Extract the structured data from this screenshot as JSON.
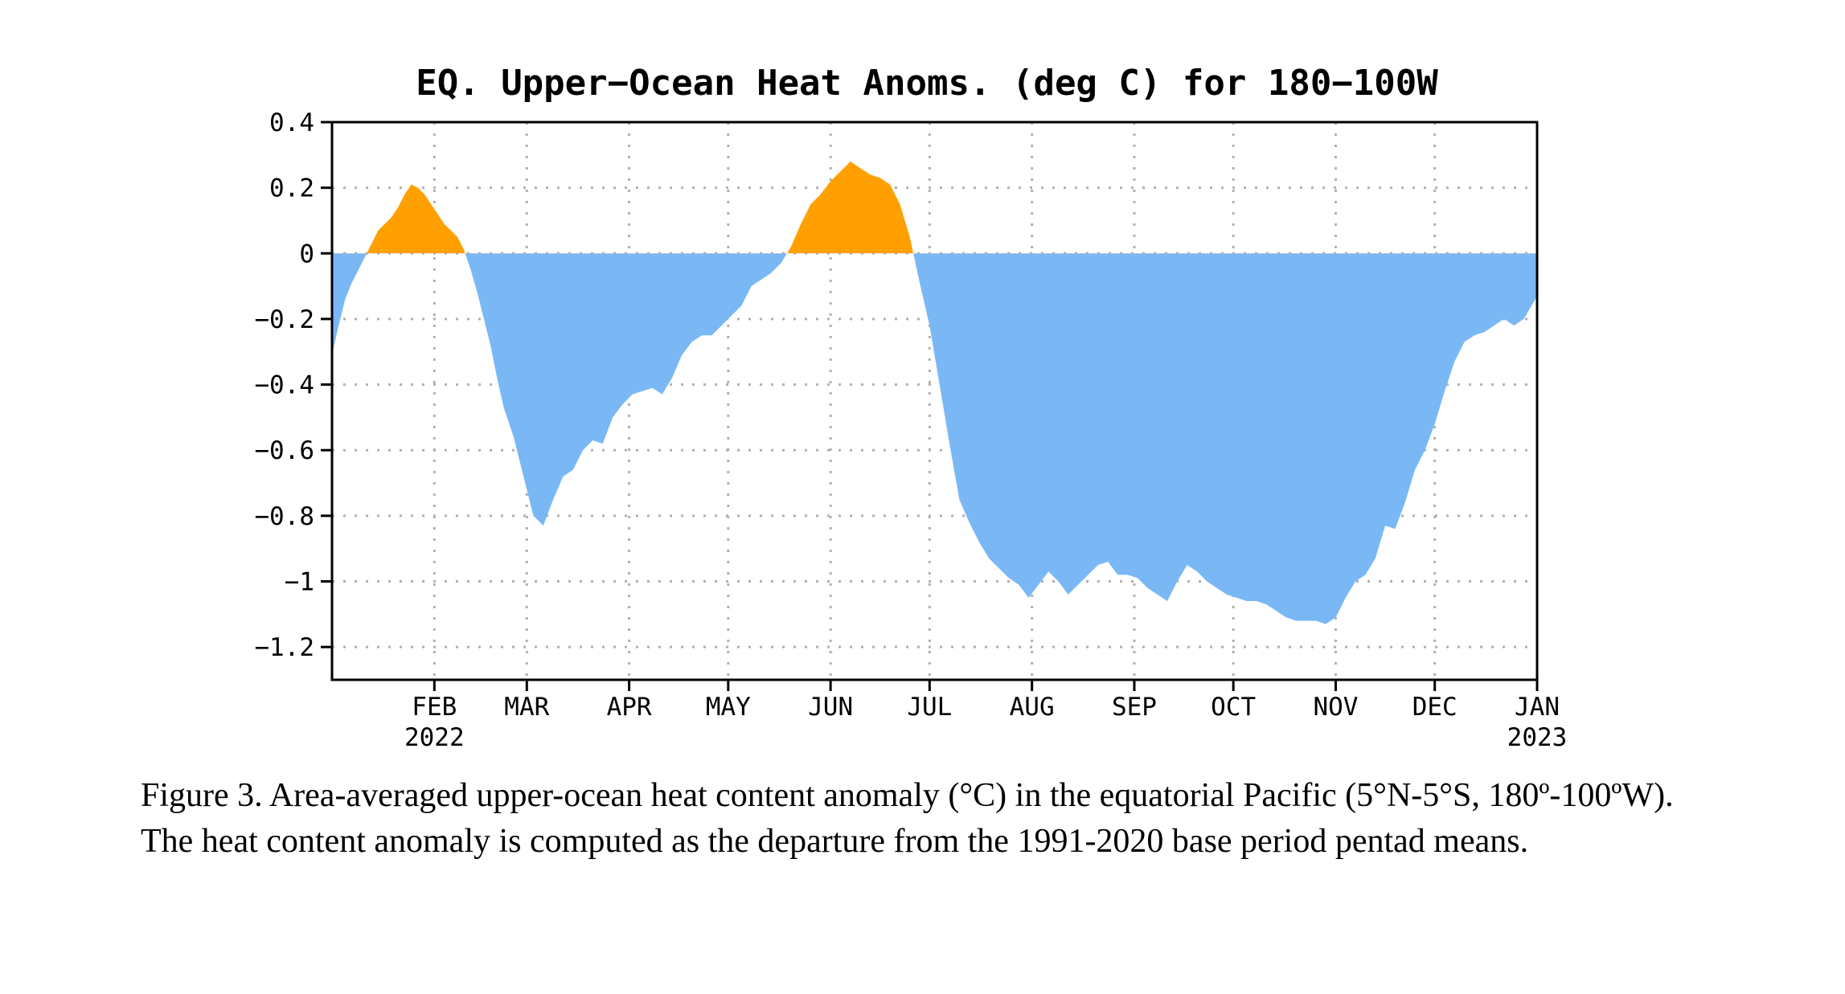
{
  "chart_data": {
    "type": "area",
    "title": "EQ. Upper−Ocean Heat Anoms. (deg C) for 180−100W",
    "xlabel": "",
    "ylabel": "",
    "ylim": [
      -1.3,
      0.4
    ],
    "yticks": [
      0.4,
      0.2,
      0,
      -0.2,
      -0.4,
      -0.6,
      -0.8,
      -1,
      -1.2
    ],
    "ytick_labels": [
      "0.4",
      "0.2",
      "0",
      "−0.2",
      "−0.4",
      "−0.6",
      "−0.8",
      "−1",
      "−1.2"
    ],
    "xlim": [
      "2022-01-01",
      "2023-01-01"
    ],
    "xticks": [
      {
        "date": "2022-02-01",
        "label": "FEB",
        "year": "2022"
      },
      {
        "date": "2022-03-01",
        "label": "MAR",
        "year": ""
      },
      {
        "date": "2022-04-01",
        "label": "APR",
        "year": ""
      },
      {
        "date": "2022-05-01",
        "label": "MAY",
        "year": ""
      },
      {
        "date": "2022-06-01",
        "label": "JUN",
        "year": ""
      },
      {
        "date": "2022-07-01",
        "label": "JUL",
        "year": ""
      },
      {
        "date": "2022-08-01",
        "label": "AUG",
        "year": ""
      },
      {
        "date": "2022-09-01",
        "label": "SEP",
        "year": ""
      },
      {
        "date": "2022-10-01",
        "label": "OCT",
        "year": ""
      },
      {
        "date": "2022-11-01",
        "label": "NOV",
        "year": ""
      },
      {
        "date": "2022-12-01",
        "label": "DEC",
        "year": ""
      },
      {
        "date": "2023-01-01",
        "label": "JAN",
        "year": "2023"
      }
    ],
    "grid": true,
    "positive_color": "#ffa000",
    "negative_color": "#7ab8f5",
    "series": [
      {
        "x": [
          "2022-01-01",
          "2022-01-03",
          "2022-01-05",
          "2022-01-07",
          "2022-01-09",
          "2022-01-11",
          "2022-01-13",
          "2022-01-15",
          "2022-01-17",
          "2022-01-19",
          "2022-01-21",
          "2022-01-23",
          "2022-01-25",
          "2022-01-27",
          "2022-01-29",
          "2022-01-31",
          "2022-02-02",
          "2022-02-04",
          "2022-02-06",
          "2022-02-08",
          "2022-02-10",
          "2022-02-12",
          "2022-02-14",
          "2022-02-16",
          "2022-02-18",
          "2022-02-20",
          "2022-02-22",
          "2022-02-25",
          "2022-02-28",
          "2022-03-03",
          "2022-03-06",
          "2022-03-09",
          "2022-03-12",
          "2022-03-15",
          "2022-03-18",
          "2022-03-21",
          "2022-03-24",
          "2022-03-27",
          "2022-03-30",
          "2022-04-02",
          "2022-04-05",
          "2022-04-08",
          "2022-04-11",
          "2022-04-14",
          "2022-04-17",
          "2022-04-20",
          "2022-04-23",
          "2022-04-26",
          "2022-04-29",
          "2022-05-02",
          "2022-05-05",
          "2022-05-08",
          "2022-05-11",
          "2022-05-14",
          "2022-05-17",
          "2022-05-20",
          "2022-05-23",
          "2022-05-26",
          "2022-05-29",
          "2022-06-01",
          "2022-06-04",
          "2022-06-07",
          "2022-06-10",
          "2022-06-13",
          "2022-06-16",
          "2022-06-19",
          "2022-06-22",
          "2022-06-25",
          "2022-06-28",
          "2022-07-01",
          "2022-07-04",
          "2022-07-07",
          "2022-07-10",
          "2022-07-13",
          "2022-07-16",
          "2022-07-19",
          "2022-07-22",
          "2022-07-25",
          "2022-07-28",
          "2022-07-31",
          "2022-08-03",
          "2022-08-06",
          "2022-08-09",
          "2022-08-12",
          "2022-08-15",
          "2022-08-18",
          "2022-08-21",
          "2022-08-24",
          "2022-08-27",
          "2022-08-30",
          "2022-09-02",
          "2022-09-05",
          "2022-09-08",
          "2022-09-11",
          "2022-09-14",
          "2022-09-17",
          "2022-09-20",
          "2022-09-23",
          "2022-09-26",
          "2022-09-29",
          "2022-10-02",
          "2022-10-05",
          "2022-10-08",
          "2022-10-11",
          "2022-10-14",
          "2022-10-17",
          "2022-10-20",
          "2022-10-23",
          "2022-10-26",
          "2022-10-29",
          "2022-11-01",
          "2022-11-04",
          "2022-11-07",
          "2022-11-10",
          "2022-11-13",
          "2022-11-16",
          "2022-11-19",
          "2022-11-22",
          "2022-11-25",
          "2022-11-28",
          "2022-12-01",
          "2022-12-04",
          "2022-12-07",
          "2022-12-10",
          "2022-12-13",
          "2022-12-16",
          "2022-12-19",
          "2022-12-22",
          "2022-12-25",
          "2022-12-28",
          "2023-01-01"
        ],
        "values": [
          -0.31,
          -0.22,
          -0.14,
          -0.09,
          -0.05,
          -0.01,
          0.03,
          0.07,
          0.09,
          0.11,
          0.14,
          0.18,
          0.21,
          0.2,
          0.18,
          0.15,
          0.12,
          0.09,
          0.07,
          0.05,
          0.01,
          -0.05,
          -0.12,
          -0.2,
          -0.28,
          -0.38,
          -0.47,
          -0.56,
          -0.68,
          -0.8,
          -0.83,
          -0.75,
          -0.68,
          -0.66,
          -0.6,
          -0.57,
          -0.58,
          -0.5,
          -0.46,
          -0.43,
          -0.42,
          -0.41,
          -0.43,
          -0.38,
          -0.31,
          -0.27,
          -0.25,
          -0.25,
          -0.22,
          -0.19,
          -0.16,
          -0.1,
          -0.08,
          -0.06,
          -0.03,
          0.02,
          0.09,
          0.15,
          0.18,
          0.22,
          0.25,
          0.28,
          0.26,
          0.24,
          0.23,
          0.21,
          0.15,
          0.05,
          -0.09,
          -0.22,
          -0.4,
          -0.58,
          -0.75,
          -0.82,
          -0.88,
          -0.93,
          -0.96,
          -0.99,
          -1.01,
          -1.05,
          -1.01,
          -0.97,
          -1.0,
          -1.04,
          -1.01,
          -0.98,
          -0.95,
          -0.94,
          -0.98,
          -0.98,
          -0.99,
          -1.02,
          -1.04,
          -1.06,
          -1.0,
          -0.95,
          -0.97,
          -1.0,
          -1.02,
          -1.04,
          -1.05,
          -1.06,
          -1.06,
          -1.07,
          -1.09,
          -1.11,
          -1.12,
          -1.12,
          -1.12,
          -1.13,
          -1.11,
          -1.05,
          -1.0,
          -0.98,
          -0.93,
          -0.83,
          -0.84,
          -0.76,
          -0.66,
          -0.6,
          -0.52,
          -0.42,
          -0.33,
          -0.27,
          -0.25,
          -0.24,
          -0.22,
          -0.2,
          -0.22,
          -0.2,
          -0.13
        ]
      }
    ]
  },
  "caption": "Figure 3. Area-averaged upper-ocean heat content anomaly (°C) in the equatorial Pacific (5°N-5°S, 180º-100ºW). The heat content anomaly is computed as the departure from the 1991-2020 base period pentad means."
}
